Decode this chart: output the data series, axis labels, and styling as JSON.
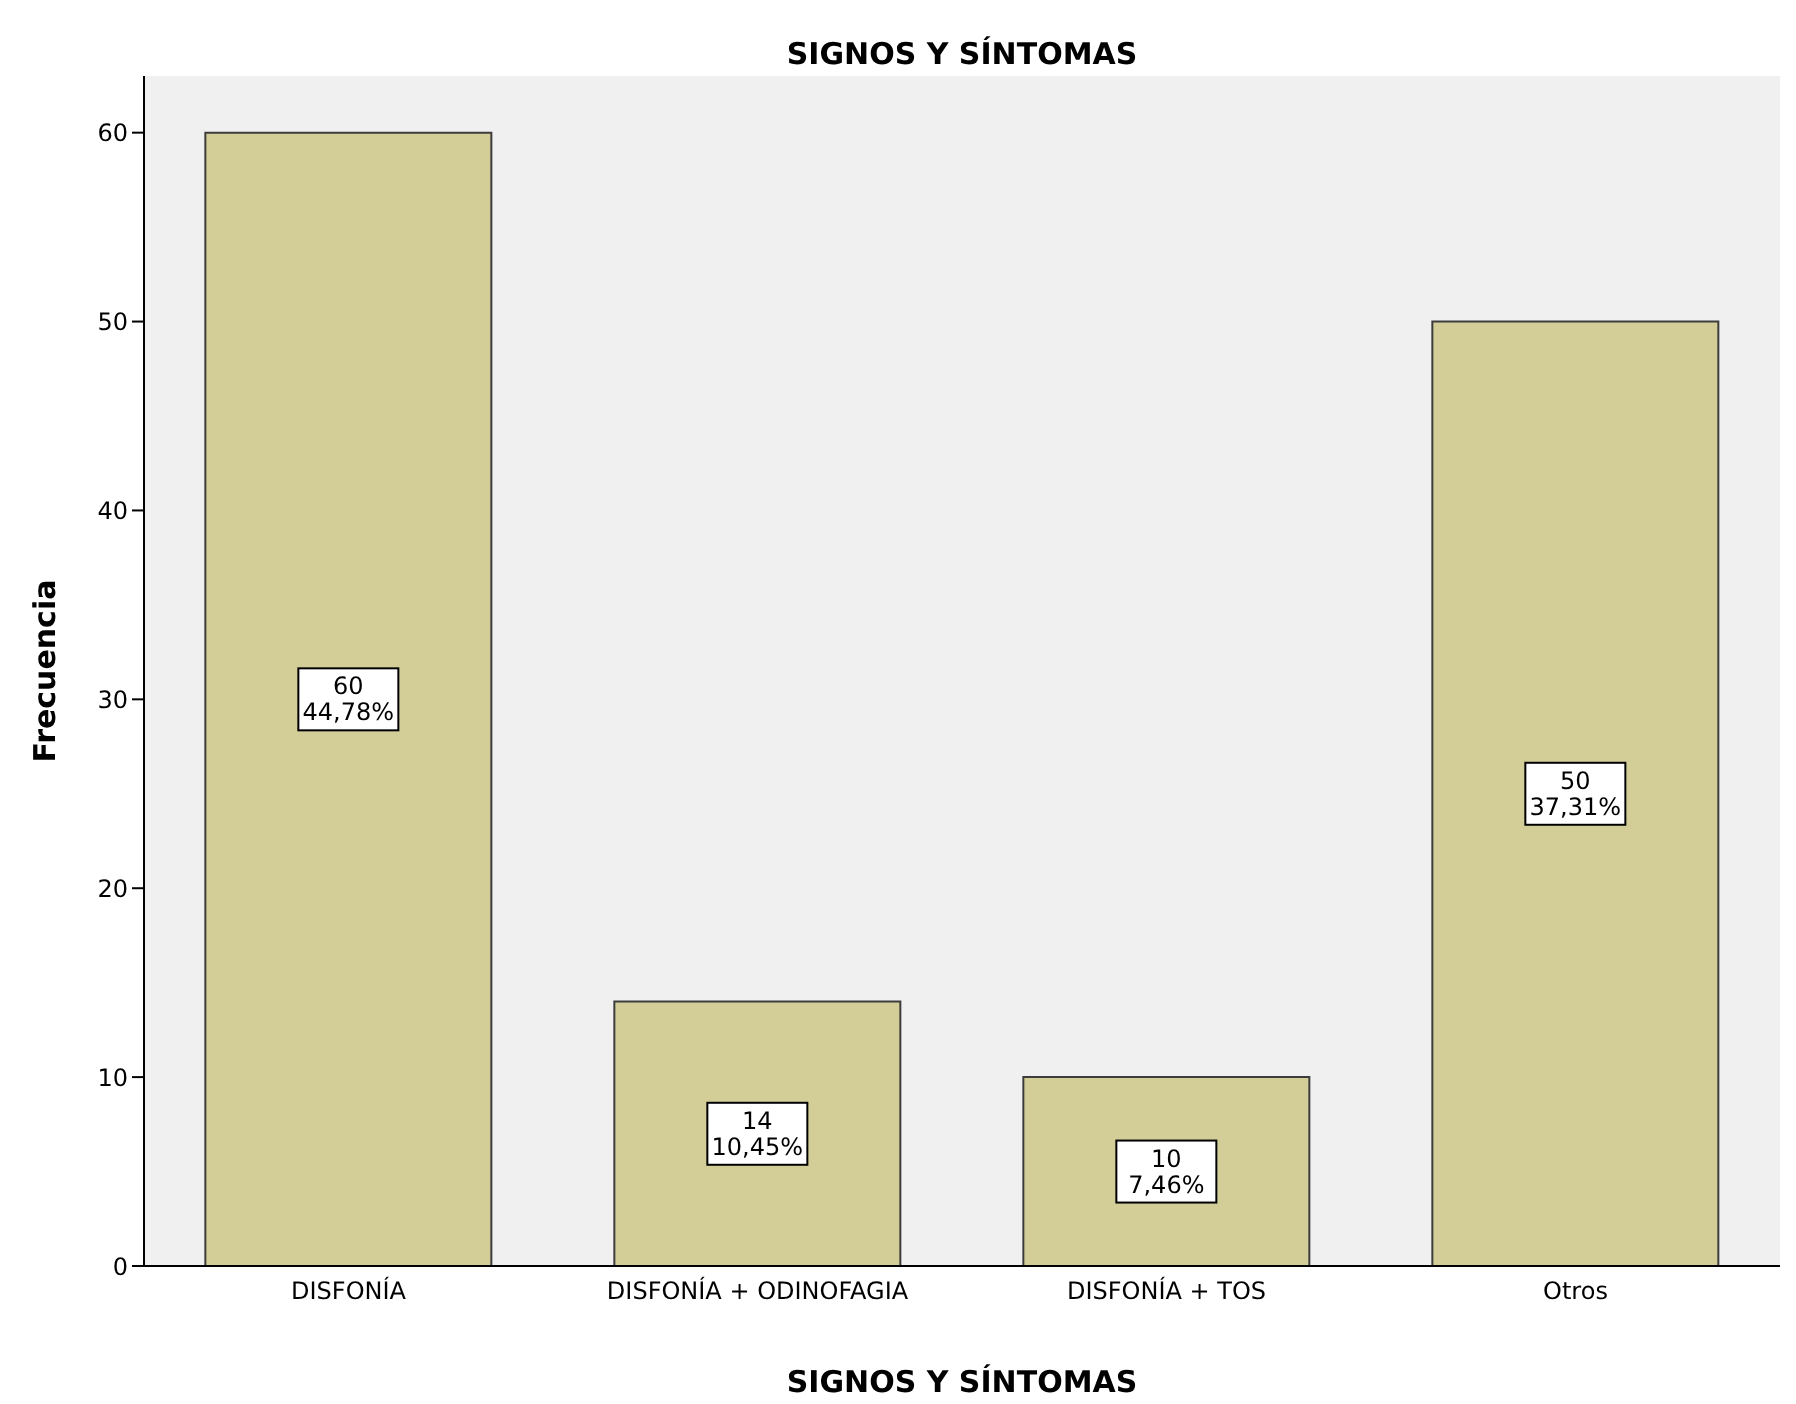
{
  "chart_data": {
    "type": "bar",
    "title": "SIGNOS Y SÍNTOMAS",
    "xlabel": "SIGNOS Y SÍNTOMAS",
    "ylabel": "Frecuencia",
    "categories": [
      "DISFONÍA",
      "DISFONÍA + ODINOFAGIA",
      "DISFONÍA + TOS",
      "Otros"
    ],
    "values": [
      60,
      14,
      10,
      50
    ],
    "value_labels": [
      "60\n44,78%",
      "14\n10,45%",
      "10\n7,46%",
      "50\n37,31%"
    ],
    "color": "#d3ce97",
    "ylim": [
      0,
      63
    ],
    "yticks": [
      0,
      10,
      20,
      30,
      40,
      50,
      60
    ],
    "grid": false
  }
}
